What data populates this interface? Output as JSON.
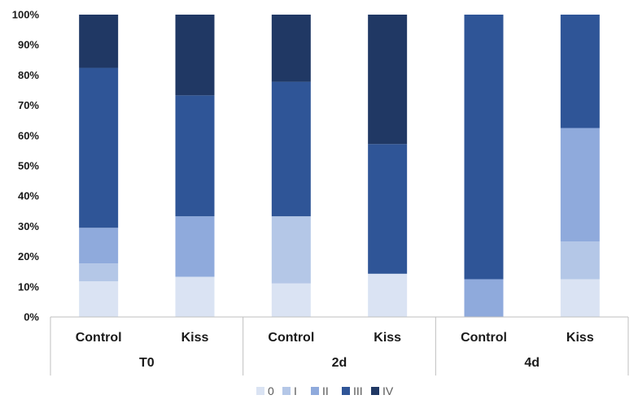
{
  "chart_data": {
    "type": "bar",
    "stacked": true,
    "normalized": true,
    "groups": [
      {
        "label": "T0",
        "categories": [
          "Control",
          "Kiss"
        ]
      },
      {
        "label": "2d",
        "categories": [
          "Control",
          "Kiss"
        ]
      },
      {
        "label": "4d",
        "categories": [
          "Control",
          "Kiss"
        ]
      }
    ],
    "bars": [
      "T0 Control",
      "T0 Kiss",
      "2d Control",
      "2d Kiss",
      "4d Control",
      "4d Kiss"
    ],
    "series": [
      {
        "name": "0",
        "color": "#dae3f3",
        "values": [
          11.8,
          13.3,
          11.1,
          14.3,
          0.0,
          12.5
        ]
      },
      {
        "name": "I",
        "color": "#b4c7e7",
        "values": [
          5.9,
          0.0,
          22.2,
          0.0,
          0.0,
          12.5
        ]
      },
      {
        "name": "II",
        "color": "#8faadc",
        "values": [
          11.8,
          20.0,
          0.0,
          0.0,
          12.5,
          37.5
        ]
      },
      {
        "name": "III",
        "color": "#2f5597",
        "values": [
          52.9,
          40.0,
          44.5,
          42.9,
          87.5,
          37.5
        ]
      },
      {
        "name": "IV",
        "color": "#203864",
        "values": [
          17.6,
          26.7,
          22.2,
          42.8,
          0.0,
          0.0
        ]
      }
    ],
    "ylim": [
      0,
      100
    ],
    "yticks": [
      "0%",
      "10%",
      "20%",
      "30%",
      "40%",
      "50%",
      "60%",
      "70%",
      "80%",
      "90%",
      "100%"
    ],
    "legend_position": "bottom",
    "grid": false
  }
}
